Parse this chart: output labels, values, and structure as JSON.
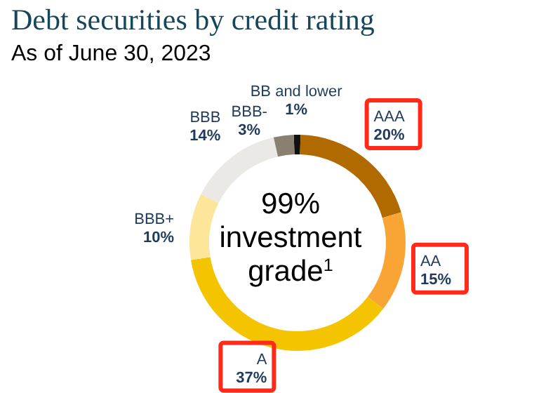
{
  "chart_data": {
    "type": "donut",
    "title": "Debt securities by credit rating",
    "subtitle": "As of June 30, 2023",
    "categories": [
      "BB and lower",
      "AAA",
      "AA",
      "A",
      "BBB+",
      "BBB",
      "BBB-"
    ],
    "values": [
      1,
      20,
      15,
      37,
      10,
      14,
      3
    ],
    "value_labels": [
      "1%",
      "20%",
      "15%",
      "37%",
      "10%",
      "14%",
      "3%"
    ],
    "colors": [
      "#111111",
      "#b06a00",
      "#f9a535",
      "#f5c400",
      "#fde59a",
      "#ebe9e6",
      "#8a8070"
    ],
    "annotations": [
      "99% investment grade$^{1}$"
    ]
  }
}
